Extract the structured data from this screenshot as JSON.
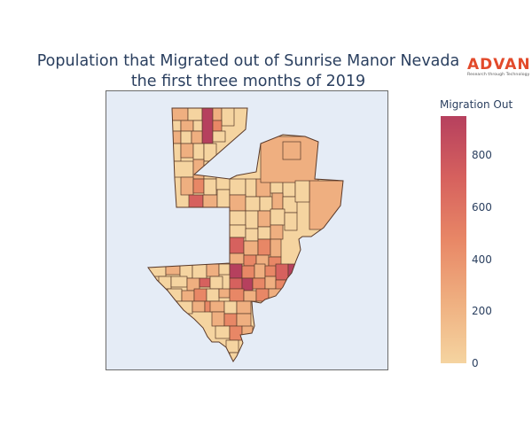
{
  "title": {
    "line1": "Population that Migrated out of Sunrise Manor Nevada",
    "line2": "the first three months of 2019"
  },
  "logo": {
    "word": "ADVAN",
    "tagline": "Research through Technology",
    "color": "#e24a2b"
  },
  "colorbar": {
    "title": "Migration Out",
    "ticks": [
      "800",
      "600",
      "400",
      "200",
      "0"
    ],
    "tick_values": [
      800,
      600,
      400,
      200,
      0
    ],
    "min": 0,
    "max": 950,
    "colorscale": [
      "#f5d4a0",
      "#efaf80",
      "#e88766",
      "#d6615e",
      "#b6405e"
    ]
  },
  "map": {
    "background": "#e5ecf6",
    "border_color": "#6b6b6b",
    "tract_border_color": "#5a3a2a"
  }
}
